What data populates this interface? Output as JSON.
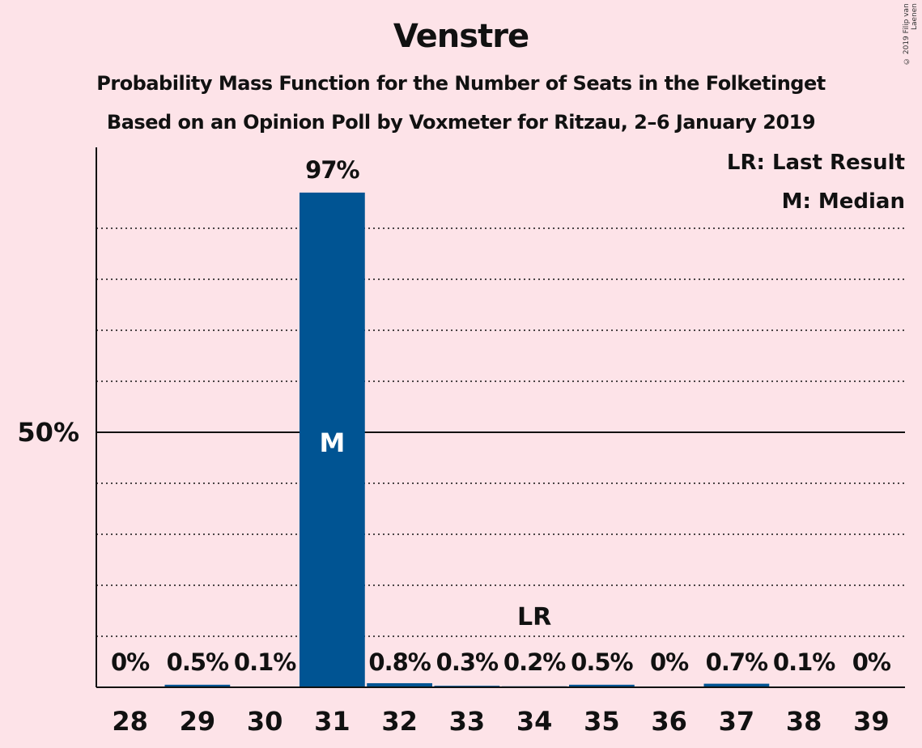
{
  "title": "Venstre",
  "subtitle1": "Probability Mass Function for the Number of Seats in the Folketinget",
  "subtitle2": "Based on an Opinion Poll by Voxmeter for Ritzau, 2–6 January 2019",
  "copyright": "© 2019 Filip van Laenen",
  "legend": {
    "last_result": "LR: Last Result",
    "median": "M: Median"
  },
  "colors": {
    "bar": "#005493",
    "background": "#fde3e8"
  },
  "chart_data": {
    "type": "bar",
    "categories": [
      "28",
      "29",
      "30",
      "31",
      "32",
      "33",
      "34",
      "35",
      "36",
      "37",
      "38",
      "39"
    ],
    "values": [
      0,
      0.5,
      0.1,
      97,
      0.8,
      0.3,
      0.2,
      0.5,
      0,
      0.7,
      0.1,
      0
    ],
    "value_labels": [
      "0%",
      "0.5%",
      "0.1%",
      "97%",
      "0.8%",
      "0.3%",
      "0.2%",
      "0.5%",
      "0%",
      "0.7%",
      "0.1%",
      "0%"
    ],
    "ylim": [
      0,
      100
    ],
    "y_tick_label": "50%",
    "y_tick_value": 50,
    "gridlines": [
      10,
      20,
      30,
      40,
      60,
      70,
      80,
      90
    ],
    "median_category": "31",
    "median_marker": "M",
    "last_result_category": "34",
    "last_result_marker": "LR"
  }
}
